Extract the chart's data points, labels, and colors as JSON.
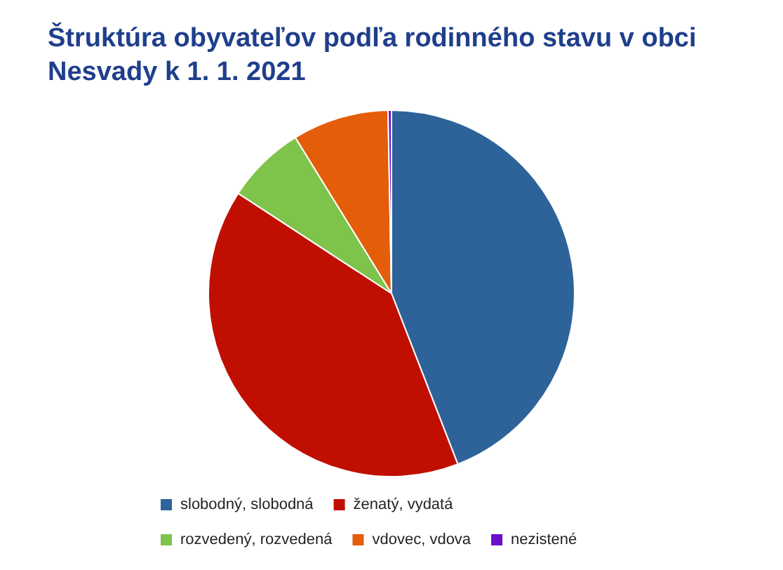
{
  "chart_data": {
    "type": "pie",
    "title": "Štruktúra obyvateľov podľa rodinného stavu v obci Nesvady k 1. 1. 2021",
    "categories": [
      "slobodný, slobodná",
      "ženatý, vydatá",
      "rozvedený, rozvedená",
      "vdovec, vdova",
      "nezistené"
    ],
    "values": [
      44.1,
      40.1,
      7.0,
      8.5,
      0.3
    ],
    "colors": [
      "#2e6399",
      "#c00f00",
      "#7ec34a",
      "#e35d0a",
      "#6a0dcc"
    ],
    "legend": "bottom"
  }
}
